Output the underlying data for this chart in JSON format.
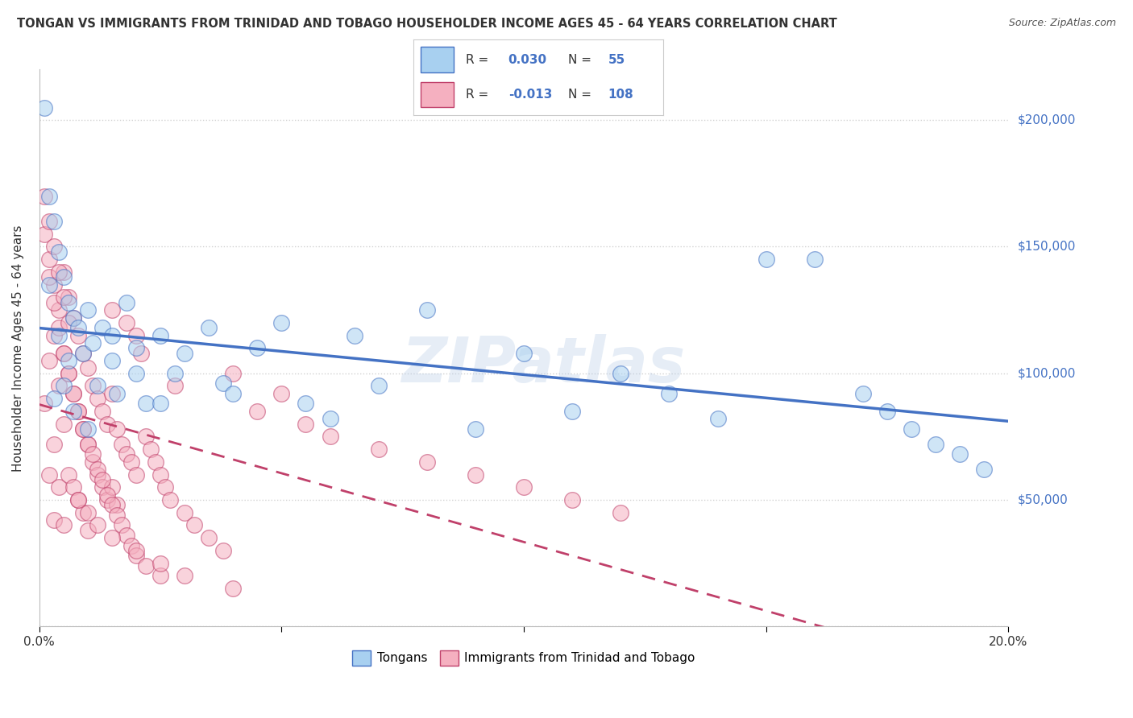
{
  "title": "TONGAN VS IMMIGRANTS FROM TRINIDAD AND TOBAGO HOUSEHOLDER INCOME AGES 45 - 64 YEARS CORRELATION CHART",
  "source": "Source: ZipAtlas.com",
  "xlabel": "",
  "ylabel": "Householder Income Ages 45 - 64 years",
  "xlim": [
    0.0,
    0.2
  ],
  "ylim": [
    0,
    220000
  ],
  "yticks": [
    0,
    50000,
    100000,
    150000,
    200000
  ],
  "ytick_labels": [
    "",
    "$50,000",
    "$100,000",
    "$150,000",
    "$200,000"
  ],
  "xticks": [
    0.0,
    0.05,
    0.1,
    0.15,
    0.2
  ],
  "xtick_labels": [
    "0.0%",
    "",
    "",
    "",
    "20.0%"
  ],
  "R_tongans": 0.03,
  "N_tongans": 55,
  "R_tt": -0.013,
  "N_tt": 108,
  "color_tongans": "#A8D0F0",
  "color_tt": "#F5B0C0",
  "color_tongans_line": "#4472C4",
  "color_tt_line": "#C0406A",
  "color_legend_text": "#4472C4",
  "color_title": "#333333",
  "background_color": "#FFFFFF",
  "grid_color": "#CCCCCC",
  "watermark": "ZIPatlas",
  "tongans_x": [
    0.001,
    0.002,
    0.002,
    0.003,
    0.003,
    0.004,
    0.004,
    0.005,
    0.005,
    0.006,
    0.006,
    0.007,
    0.007,
    0.008,
    0.009,
    0.01,
    0.01,
    0.011,
    0.012,
    0.013,
    0.015,
    0.016,
    0.018,
    0.02,
    0.022,
    0.025,
    0.028,
    0.03,
    0.035,
    0.038,
    0.04,
    0.045,
    0.05,
    0.055,
    0.06,
    0.065,
    0.07,
    0.08,
    0.09,
    0.1,
    0.11,
    0.12,
    0.13,
    0.14,
    0.15,
    0.16,
    0.17,
    0.175,
    0.18,
    0.185,
    0.19,
    0.195,
    0.015,
    0.02,
    0.025
  ],
  "tongans_y": [
    205000,
    170000,
    135000,
    160000,
    90000,
    148000,
    115000,
    138000,
    95000,
    128000,
    105000,
    122000,
    85000,
    118000,
    108000,
    125000,
    78000,
    112000,
    95000,
    118000,
    105000,
    92000,
    128000,
    110000,
    88000,
    115000,
    100000,
    108000,
    118000,
    96000,
    92000,
    110000,
    120000,
    88000,
    82000,
    115000,
    95000,
    125000,
    78000,
    108000,
    85000,
    100000,
    92000,
    82000,
    145000,
    145000,
    92000,
    85000,
    78000,
    72000,
    68000,
    62000,
    115000,
    100000,
    88000
  ],
  "tt_x": [
    0.001,
    0.001,
    0.002,
    0.002,
    0.002,
    0.003,
    0.003,
    0.003,
    0.003,
    0.004,
    0.004,
    0.004,
    0.005,
    0.005,
    0.005,
    0.005,
    0.006,
    0.006,
    0.006,
    0.007,
    0.007,
    0.007,
    0.008,
    0.008,
    0.008,
    0.009,
    0.009,
    0.009,
    0.01,
    0.01,
    0.01,
    0.011,
    0.011,
    0.012,
    0.012,
    0.013,
    0.013,
    0.014,
    0.014,
    0.015,
    0.015,
    0.015,
    0.016,
    0.016,
    0.017,
    0.018,
    0.018,
    0.019,
    0.02,
    0.02,
    0.021,
    0.022,
    0.023,
    0.024,
    0.025,
    0.026,
    0.027,
    0.028,
    0.03,
    0.032,
    0.035,
    0.038,
    0.04,
    0.045,
    0.05,
    0.055,
    0.06,
    0.07,
    0.08,
    0.09,
    0.1,
    0.11,
    0.12,
    0.002,
    0.003,
    0.004,
    0.005,
    0.006,
    0.007,
    0.008,
    0.009,
    0.01,
    0.011,
    0.012,
    0.013,
    0.014,
    0.015,
    0.016,
    0.017,
    0.018,
    0.019,
    0.02,
    0.022,
    0.025,
    0.001,
    0.002,
    0.003,
    0.004,
    0.005,
    0.006,
    0.008,
    0.01,
    0.012,
    0.015,
    0.02,
    0.025,
    0.03,
    0.04
  ],
  "tt_y": [
    155000,
    88000,
    145000,
    105000,
    60000,
    135000,
    115000,
    72000,
    42000,
    125000,
    95000,
    55000,
    140000,
    108000,
    80000,
    40000,
    130000,
    100000,
    60000,
    122000,
    92000,
    55000,
    115000,
    85000,
    50000,
    108000,
    78000,
    45000,
    102000,
    72000,
    38000,
    95000,
    65000,
    90000,
    60000,
    85000,
    55000,
    80000,
    50000,
    125000,
    92000,
    55000,
    78000,
    48000,
    72000,
    120000,
    68000,
    65000,
    115000,
    60000,
    108000,
    75000,
    70000,
    65000,
    60000,
    55000,
    50000,
    95000,
    45000,
    40000,
    35000,
    30000,
    100000,
    85000,
    92000,
    80000,
    75000,
    70000,
    65000,
    60000,
    55000,
    50000,
    45000,
    138000,
    128000,
    118000,
    108000,
    100000,
    92000,
    85000,
    78000,
    72000,
    68000,
    62000,
    58000,
    52000,
    48000,
    44000,
    40000,
    36000,
    32000,
    28000,
    24000,
    20000,
    170000,
    160000,
    150000,
    140000,
    130000,
    120000,
    50000,
    45000,
    40000,
    35000,
    30000,
    25000,
    20000,
    15000
  ]
}
